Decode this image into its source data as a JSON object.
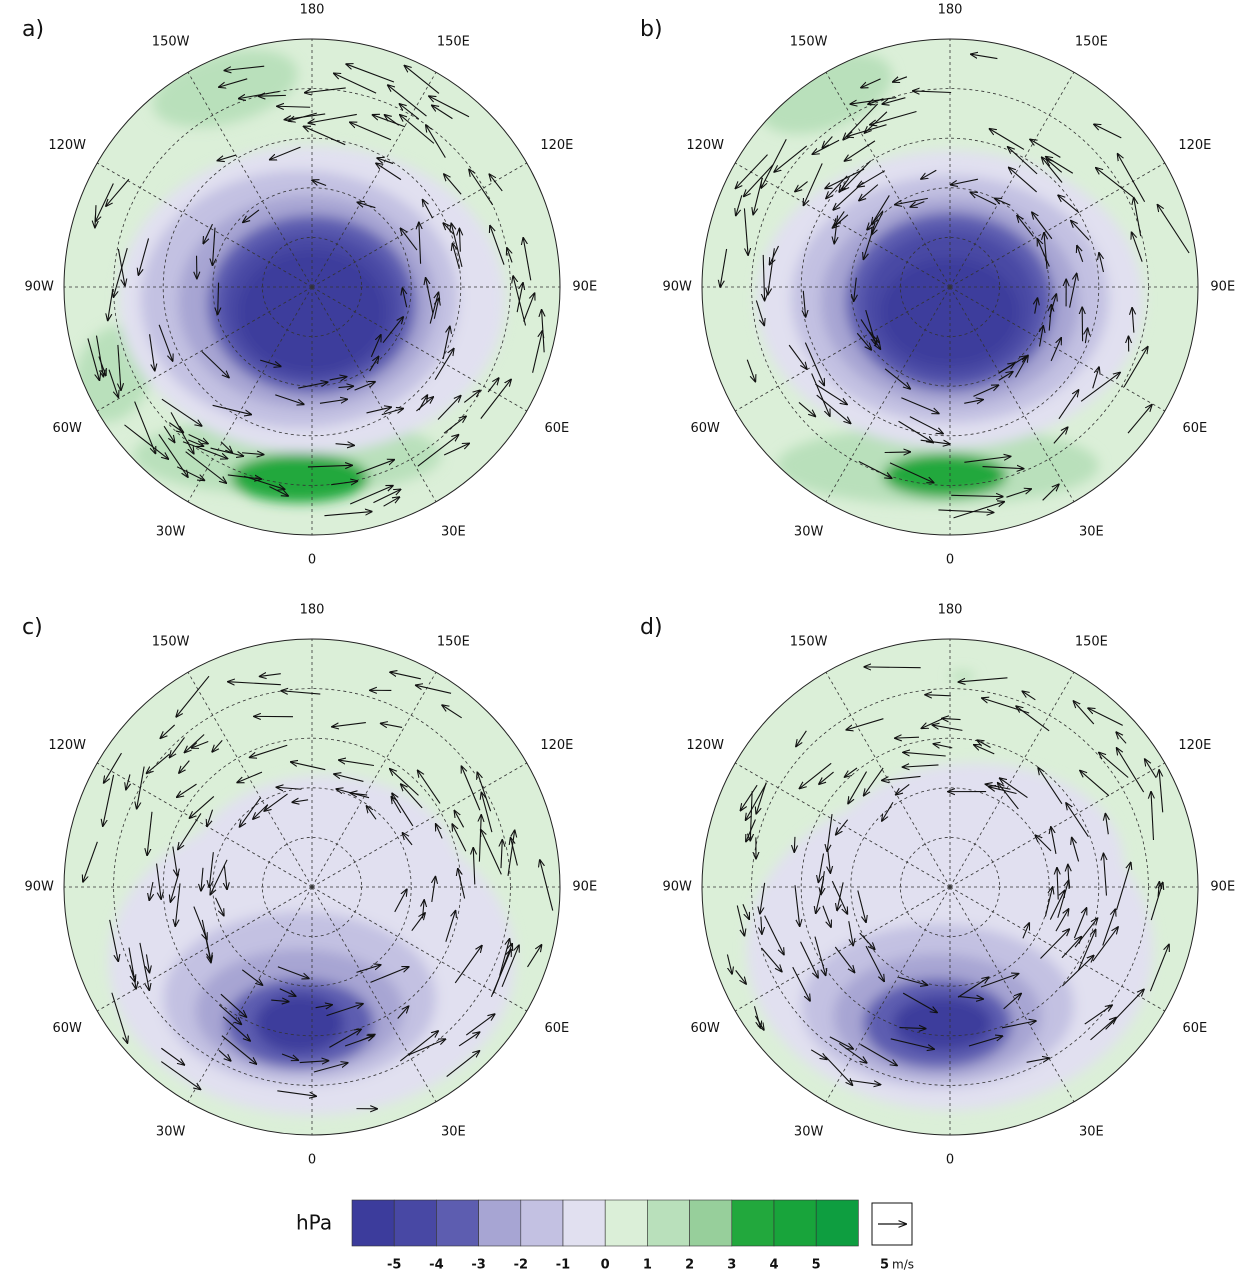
{
  "panels": [
    {
      "label": "a)"
    },
    {
      "label": "b)"
    },
    {
      "label": "c)"
    },
    {
      "label": "d)"
    }
  ],
  "longitude_labels": [
    "0",
    "30E",
    "60E",
    "90E",
    "120E",
    "150E",
    "180",
    "150W",
    "120W",
    "90W",
    "60W",
    "30W"
  ],
  "colorbar": {
    "unit": "hPa",
    "ticks": [
      -5,
      -4,
      -3,
      -2,
      -1,
      0,
      1,
      2,
      3,
      4,
      5
    ],
    "colors": [
      "#3c3c9c",
      "#4848a4",
      "#5d5db0",
      "#a7a5d3",
      "#c3c1e2",
      "#e1e0f0",
      "#dbefd8",
      "#b9e0bb",
      "#97cf9b",
      "#22a83d",
      "#18a43b",
      "#0e9e40"
    ]
  },
  "reference_vector": {
    "value": 5,
    "unit": "m/s"
  }
}
